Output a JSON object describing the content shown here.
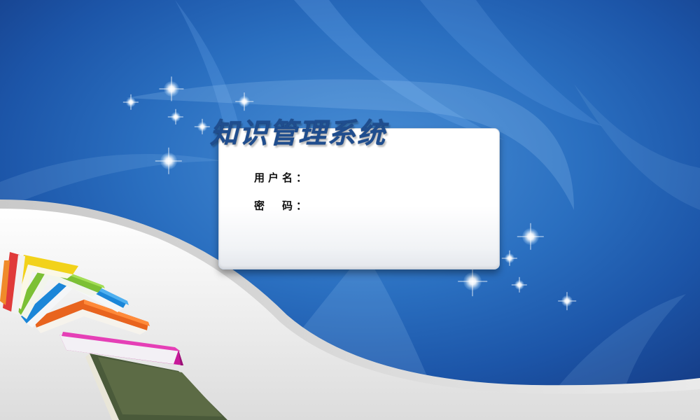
{
  "app": {
    "title": "知识管理系统"
  },
  "login": {
    "username_label": "用户名：",
    "username_value": "",
    "password_label": "密　码：",
    "password_value": ""
  },
  "colors": {
    "background_blue": "#2a6fc0",
    "title_blue": "#1f4d8e",
    "card_white": "#ffffff"
  },
  "decorations": {
    "books_icon": "stacked-books-icon",
    "sparkle_icon": "sparkle-icon"
  }
}
